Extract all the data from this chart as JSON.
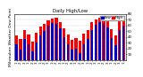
{
  "title": "Daily High/Low",
  "ylabel_left": "Milwaukee Weather Dew Point",
  "title_fontsize": 3.8,
  "ylabel_fontsize": 3.2,
  "background_color": "#ffffff",
  "plot_bg_color": "#ffffff",
  "bar_color_high": "#ff0000",
  "bar_color_low": "#0000cc",
  "legend_high": "High",
  "legend_low": "Low",
  "ylim": [
    0,
    80
  ],
  "yticks": [
    10,
    20,
    30,
    40,
    50,
    60,
    70,
    80
  ],
  "n_groups": 28,
  "x_labels": [
    "1",
    "2",
    "3",
    "1",
    "2",
    "3",
    "1",
    "2",
    "3",
    "1",
    "2",
    "3",
    "1",
    "2",
    "3",
    "1",
    "2",
    "3",
    "1",
    "2",
    "3",
    "1",
    "2",
    "3",
    "1",
    "2",
    "3",
    "1"
  ],
  "high_values": [
    42,
    36,
    52,
    44,
    32,
    48,
    58,
    62,
    68,
    72,
    74,
    66,
    55,
    44,
    35,
    38,
    34,
    46,
    52,
    65,
    70,
    74,
    73,
    68,
    54,
    42,
    68,
    72
  ],
  "low_values": [
    28,
    18,
    36,
    28,
    15,
    30,
    42,
    50,
    60,
    64,
    63,
    55,
    40,
    28,
    18,
    20,
    12,
    28,
    36,
    52,
    61,
    65,
    63,
    56,
    38,
    26,
    52,
    60
  ],
  "grid_color": "#aaaaaa",
  "tick_fontsize": 2.8,
  "legend_fontsize": 2.8
}
